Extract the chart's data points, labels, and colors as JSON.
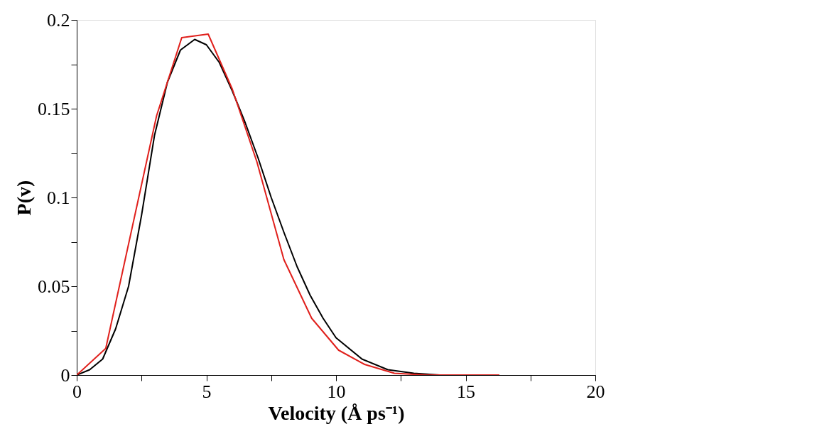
{
  "chart_data": {
    "type": "line",
    "xlabel": "Velocity (Å ps⁻¹)",
    "ylabel": "P(v)",
    "xlim": [
      0,
      20
    ],
    "ylim": [
      0,
      0.2
    ],
    "xticks": [
      0,
      {
        "value": 2.5,
        "label": null
      },
      5,
      {
        "value": 7.5,
        "label": null
      },
      10,
      {
        "value": 12.5,
        "label": null
      },
      15,
      {
        "value": 17.5,
        "label": null
      },
      20
    ],
    "yticks": [
      0,
      {
        "value": 0.025,
        "label": null
      },
      0.05,
      {
        "value": 0.075,
        "label": null
      },
      0.1,
      {
        "value": 0.125,
        "label": null
      },
      0.15,
      {
        "value": 0.175,
        "label": null
      },
      0.2
    ],
    "grid": false,
    "legend": false,
    "marker": "none",
    "line_style": "solid",
    "series": [
      {
        "color": "#000000",
        "x": [
          0,
          0.5,
          1,
          1.5,
          2,
          2.5,
          3,
          3.5,
          4,
          4.55,
          5,
          5.5,
          6,
          6.5,
          7,
          7.5,
          8,
          8.5,
          9,
          9.5,
          10,
          11,
          12,
          13,
          14,
          16.3
        ],
        "values": [
          0,
          0.003,
          0.009,
          0.026,
          0.05,
          0.09,
          0.135,
          0.165,
          0.183,
          0.189,
          0.186,
          0.176,
          0.16,
          0.142,
          0.122,
          0.1,
          0.08,
          0.061,
          0.045,
          0.032,
          0.021,
          0.009,
          0.003,
          0.001,
          0,
          0
        ]
      },
      {
        "color": "#e0201c",
        "x": [
          0,
          1.12,
          3.08,
          4.05,
          5.07,
          6.0,
          6.95,
          7.99,
          9.06,
          10.1,
          11.1,
          12.25,
          13.5,
          15,
          16.3
        ],
        "values": [
          0,
          0.015,
          0.146,
          0.19,
          0.192,
          0.161,
          0.12,
          0.065,
          0.032,
          0.014,
          0.006,
          0.001,
          0,
          0,
          0
        ]
      }
    ]
  }
}
